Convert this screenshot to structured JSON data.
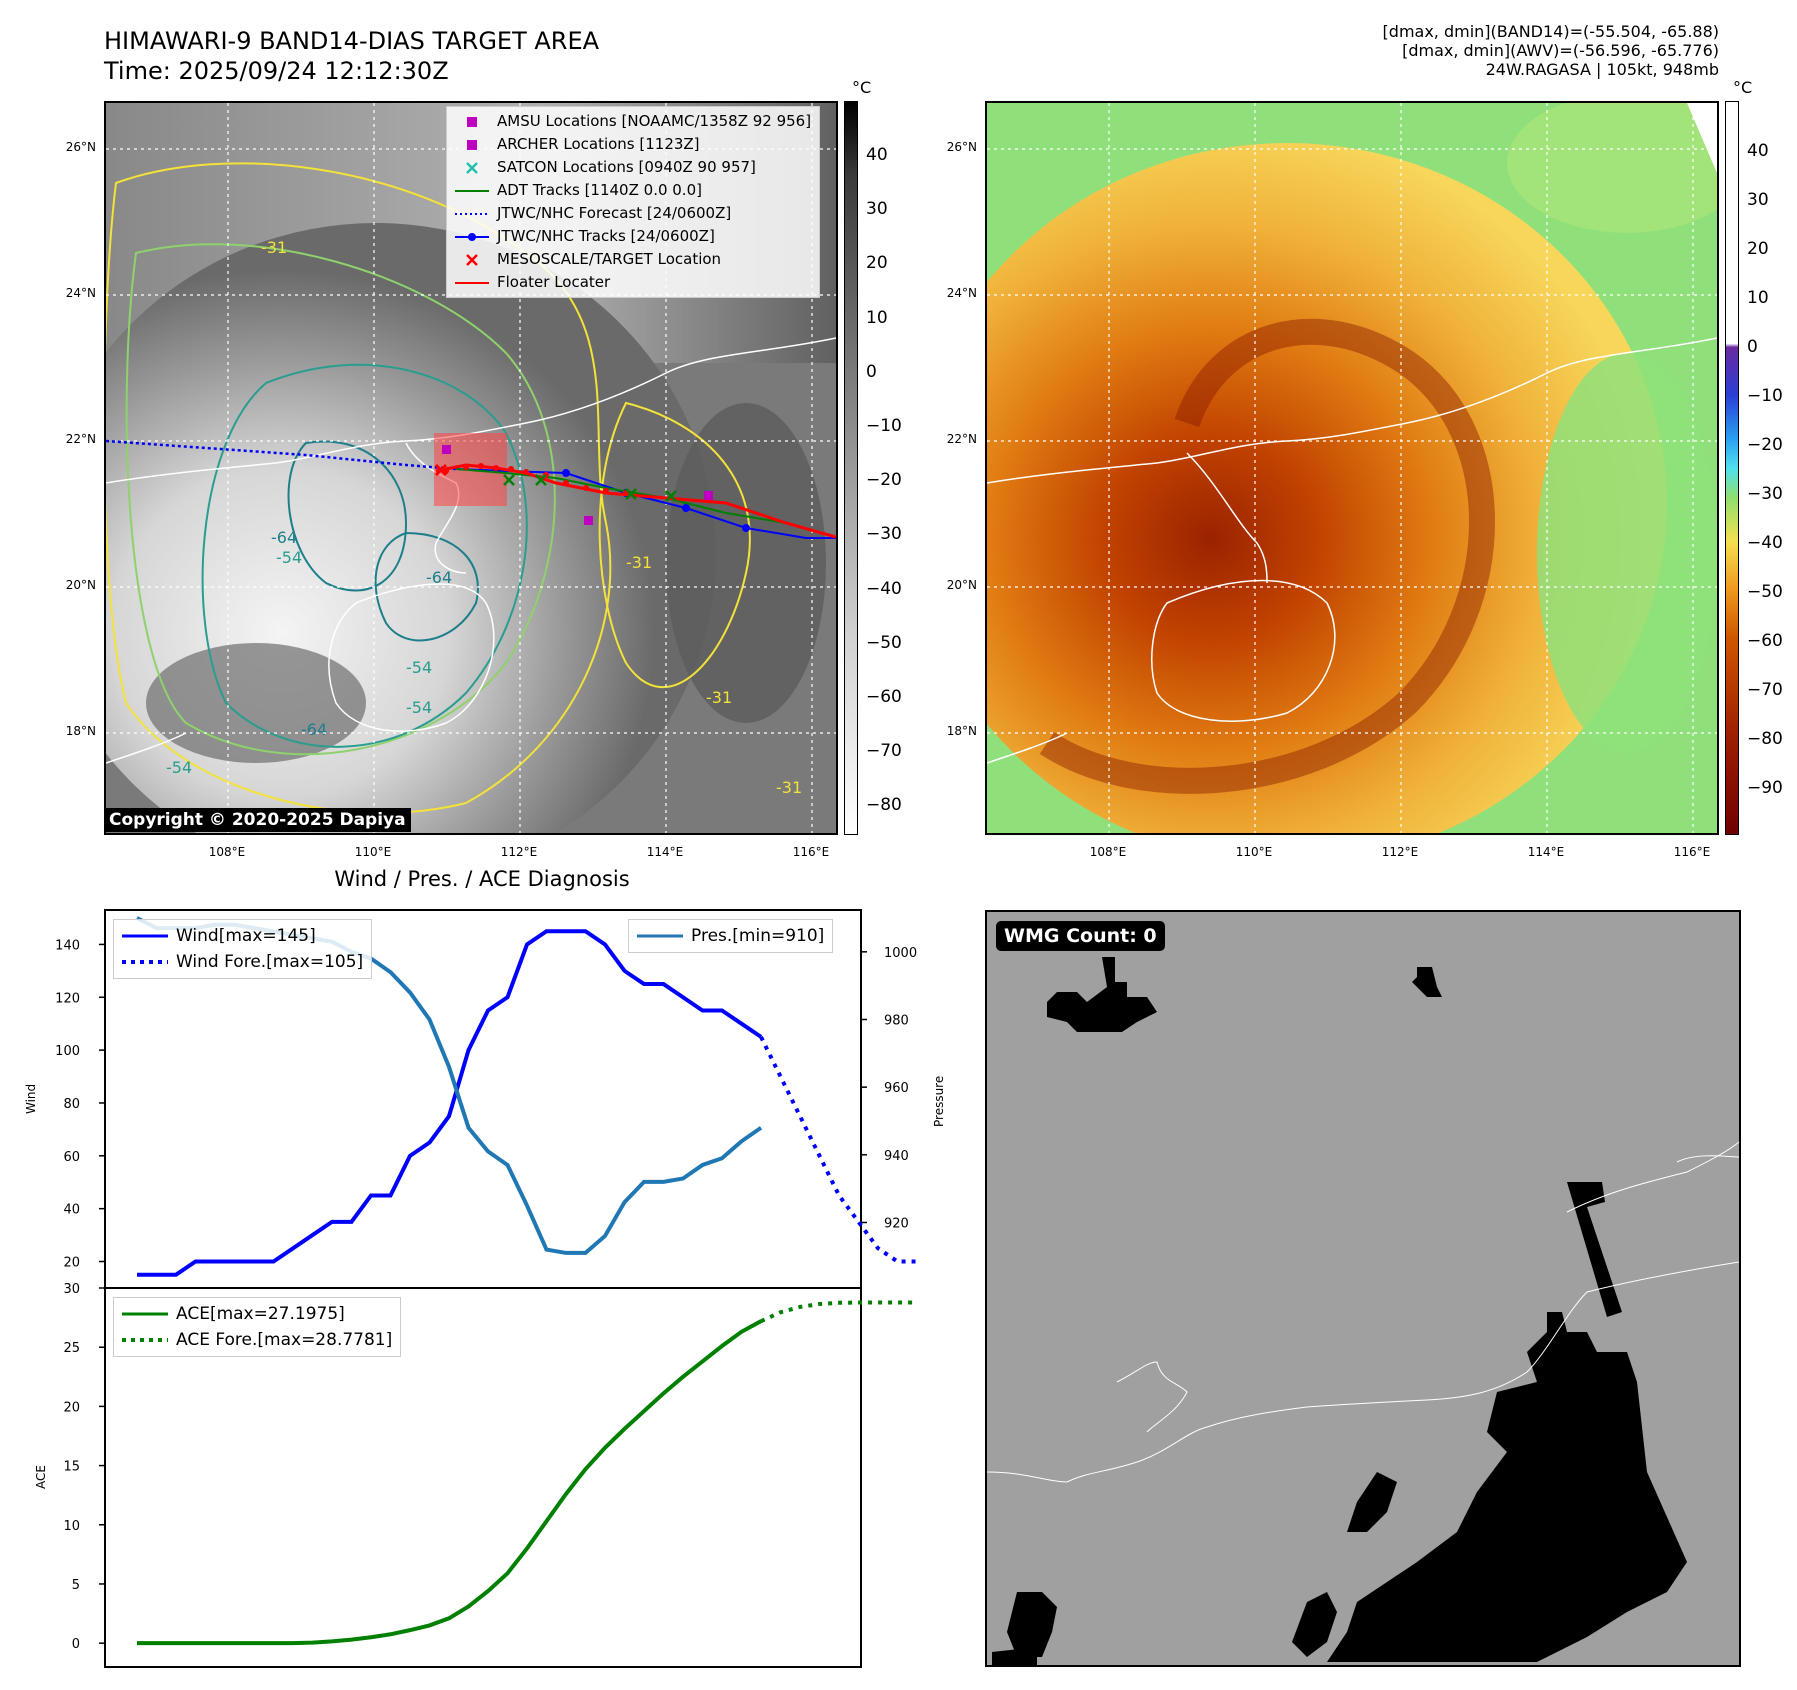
{
  "header": {
    "title_line1": "HIMAWARI-9 BAND14-DIAS TARGET AREA",
    "title_line2": "Time: 2025/09/24 12:12:30Z",
    "right_line1": "[dmax, dmin](BAND14)=(-55.504, -65.88)",
    "right_line2": "[dmax, dmin](AWV)=(-56.596, -65.776)",
    "right_line3": "24W.RAGASA | 105kt, 948mb"
  },
  "map_axes": {
    "lat_ticks": [
      "26°N",
      "24°N",
      "22°N",
      "20°N",
      "18°N"
    ],
    "lon_ticks": [
      "108°E",
      "110°E",
      "112°E",
      "114°E",
      "116°E"
    ]
  },
  "ir_panel": {
    "colorbar_unit": "°C",
    "colorbar_ticks": [
      "40",
      "30",
      "20",
      "10",
      "0",
      "−10",
      "−20",
      "−30",
      "−40",
      "−50",
      "−60",
      "−70",
      "−80"
    ],
    "contour_labels": [
      "-64",
      "-54",
      "-54",
      "-64",
      "-54",
      "-64",
      "-54",
      "-31",
      "-31",
      "-31",
      "-31"
    ],
    "copyright": "Copyright © 2020-2025 Dapiya",
    "legend": [
      {
        "label": "AMSU Locations [NOAAMC/1358Z 92 956]",
        "color": "#c000c0",
        "symbol": "square"
      },
      {
        "label": "ARCHER Locations [1123Z]",
        "color": "#c000c0",
        "symbol": "square"
      },
      {
        "label": "SATCON Locations [0940Z 90 957]",
        "color": "#20c0b0",
        "symbol": "x"
      },
      {
        "label": "ADT Tracks [1140Z 0.0 0.0]",
        "color": "#008000",
        "symbol": "line"
      },
      {
        "label": "JTWC/NHC Forecast [24/0600Z]",
        "color": "#0000ff",
        "symbol": "dotted"
      },
      {
        "label": "JTWC/NHC Tracks [24/0600Z]",
        "color": "#0000ff",
        "symbol": "line-dot"
      },
      {
        "label": "MESOSCALE/TARGET Location",
        "color": "#ff0000",
        "symbol": "x"
      },
      {
        "label": "Floater Locater",
        "color": "#ff0000",
        "symbol": "line"
      }
    ]
  },
  "awv_panel": {
    "colorbar_unit": "°C",
    "colorbar_ticks": [
      "40",
      "30",
      "20",
      "10",
      "0",
      "−10",
      "−20",
      "−30",
      "−40",
      "−50",
      "−60",
      "−70",
      "−80",
      "−90"
    ]
  },
  "wmg_panel": {
    "label": "WMG Count: 0"
  },
  "chart_data": [
    {
      "type": "line",
      "title": "Wind / Pres. / ACE Diagnosis",
      "ylabel": "Wind",
      "y2label": "Pressure",
      "ylim": [
        13,
        150
      ],
      "y2lim": [
        903,
        1010
      ],
      "yticks": [
        20,
        40,
        60,
        80,
        100,
        120,
        140
      ],
      "y2ticks": [
        920,
        940,
        960,
        980,
        1000
      ],
      "series": [
        {
          "name": "Wind[max=145]",
          "axis": "left",
          "color": "#0000ff",
          "style": "solid",
          "values": [
            15,
            15,
            15,
            20,
            20,
            20,
            20,
            20,
            25,
            30,
            35,
            35,
            45,
            45,
            60,
            65,
            75,
            100,
            115,
            120,
            140,
            145,
            145,
            145,
            140,
            130,
            125,
            125,
            120,
            115,
            115,
            110,
            105
          ]
        },
        {
          "name": "Wind Fore.[max=105]",
          "axis": "left",
          "color": "#0000ff",
          "style": "dotted",
          "start_index": 32,
          "values": [
            105,
            90,
            75,
            60,
            45,
            35,
            25,
            20,
            20
          ]
        },
        {
          "name": "Pres.[min=910]",
          "axis": "right",
          "color": "#1f77b4",
          "style": "solid",
          "values": [
            1010,
            1007,
            1007,
            1007,
            1008,
            1008,
            1007,
            1006,
            1005,
            1004,
            1003,
            1000,
            998,
            994,
            988,
            980,
            966,
            948,
            941,
            937,
            925,
            912,
            911,
            911,
            916,
            926,
            932,
            932,
            933,
            937,
            939,
            944,
            948
          ]
        }
      ]
    },
    {
      "type": "line",
      "ylabel": "ACE",
      "ylim": [
        -1,
        30
      ],
      "yticks": [
        0,
        5,
        10,
        15,
        20,
        25,
        30
      ],
      "series": [
        {
          "name": "ACE[max=27.1975]",
          "color": "#008000",
          "style": "solid",
          "values": [
            0,
            0,
            0,
            0,
            0,
            0,
            0,
            0,
            0,
            0.05,
            0.15,
            0.3,
            0.5,
            0.75,
            1.1,
            1.5,
            2.1,
            3.1,
            4.4,
            5.9,
            8.0,
            10.3,
            12.6,
            14.7,
            16.5,
            18.1,
            19.6,
            21.1,
            22.5,
            23.8,
            25.1,
            26.3,
            27.1975
          ]
        },
        {
          "name": "ACE Fore.[max=28.7781]",
          "color": "#008000",
          "style": "dotted",
          "start_index": 32,
          "values": [
            27.1975,
            27.95,
            28.4,
            28.65,
            28.75,
            28.77,
            28.78,
            28.78,
            28.78
          ]
        }
      ]
    }
  ]
}
